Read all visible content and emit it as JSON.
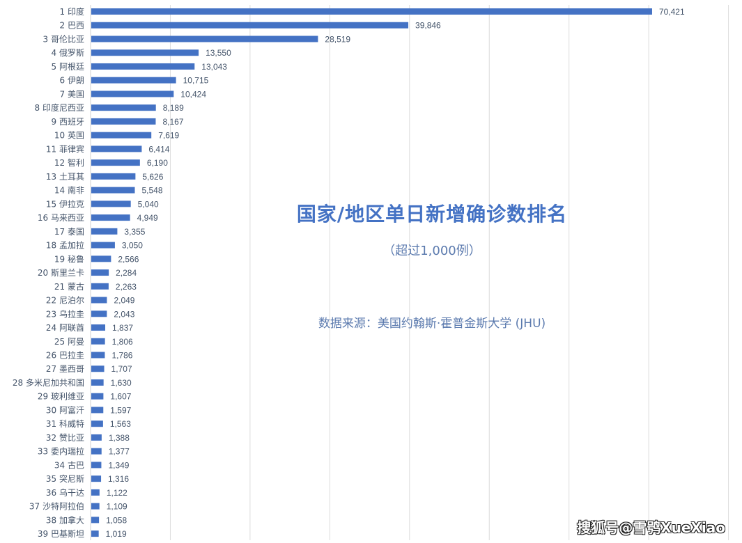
{
  "chart_data": {
    "type": "bar",
    "orientation": "horizontal",
    "title": "国家/地区单日新增确诊数排名",
    "subtitle": "（超过1,000例）",
    "source": "数据来源：美国约翰斯·霍普金斯大学 (JHU)",
    "xlim": [
      0,
      80000
    ],
    "grid": true,
    "grid_step": 10000,
    "bar_color": "#4472C4",
    "categories": [
      "1 印度",
      "2 巴西",
      "3 哥伦比亚",
      "4 俄罗斯",
      "5 阿根廷",
      "6 伊朗",
      "7 美国",
      "8 印度尼西亚",
      "9 西班牙",
      "10 英国",
      "11 菲律宾",
      "12 智利",
      "13 土耳其",
      "14 南非",
      "15 伊拉克",
      "16 马来西亚",
      "17 泰国",
      "18 孟加拉",
      "19 秘鲁",
      "20 斯里兰卡",
      "21 蒙古",
      "22 尼泊尔",
      "23 乌拉圭",
      "24 阿联酋",
      "25 阿曼",
      "26 巴拉圭",
      "27 墨西哥",
      "28 多米尼加共和国",
      "29 玻利维亚",
      "30 阿富汗",
      "31 科威特",
      "32 赞比亚",
      "33 委内瑞拉",
      "34 古巴",
      "35 突尼斯",
      "36 乌干达",
      "37 沙特阿拉伯",
      "38 加拿大",
      "39 巴基斯坦"
    ],
    "values": [
      70421,
      39846,
      28519,
      13550,
      13043,
      10715,
      10424,
      8189,
      8167,
      7619,
      6414,
      6190,
      5626,
      5548,
      5040,
      4949,
      3355,
      3050,
      2566,
      2284,
      2263,
      2049,
      2043,
      1837,
      1806,
      1786,
      1707,
      1630,
      1607,
      1597,
      1563,
      1388,
      1377,
      1349,
      1316,
      1122,
      1109,
      1058,
      1019
    ]
  },
  "watermark": "搜狐号@雪鸮XueXiao"
}
